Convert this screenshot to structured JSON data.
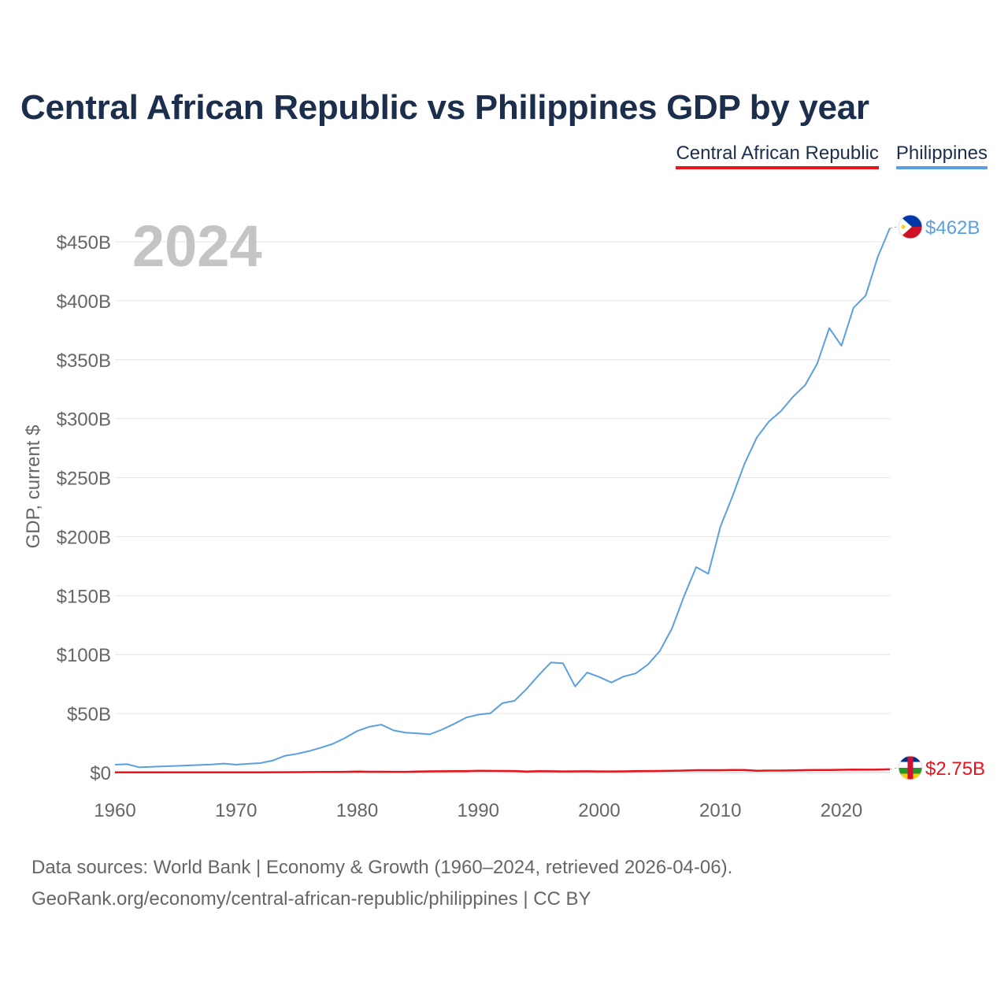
{
  "chart_data": {
    "type": "line",
    "title": "Central African Republic vs Philippines GDP by year",
    "ylabel": "GDP, current $",
    "xlabel": "",
    "year_watermark": "2024",
    "xlim": [
      1960,
      2024
    ],
    "ylim": [
      0,
      462
    ],
    "y_ticks": [
      0,
      50,
      100,
      150,
      200,
      250,
      300,
      350,
      400,
      450
    ],
    "y_tick_labels": [
      "$0",
      "$50B",
      "$100B",
      "$150B",
      "$200B",
      "$250B",
      "$300B",
      "$350B",
      "$400B",
      "$450B"
    ],
    "x_ticks": [
      1960,
      1970,
      1980,
      1990,
      2000,
      2010,
      2020
    ],
    "x_tick_labels": [
      "1960",
      "1970",
      "1980",
      "1990",
      "2000",
      "2010",
      "2020"
    ],
    "legend_position": "top-right",
    "x": [
      1960,
      1961,
      1962,
      1963,
      1964,
      1965,
      1966,
      1967,
      1968,
      1969,
      1970,
      1971,
      1972,
      1973,
      1974,
      1975,
      1976,
      1977,
      1978,
      1979,
      1980,
      1981,
      1982,
      1983,
      1984,
      1985,
      1986,
      1987,
      1988,
      1989,
      1990,
      1991,
      1992,
      1993,
      1994,
      1995,
      1996,
      1997,
      1998,
      1999,
      2000,
      2001,
      2002,
      2003,
      2004,
      2005,
      2006,
      2007,
      2008,
      2009,
      2010,
      2011,
      2012,
      2013,
      2014,
      2015,
      2016,
      2017,
      2018,
      2019,
      2020,
      2021,
      2022,
      2023,
      2024
    ],
    "series": [
      {
        "name": "Central African Republic",
        "color": "#e8141c",
        "end_label": "$2.75B",
        "values": [
          0.11,
          0.12,
          0.13,
          0.14,
          0.14,
          0.15,
          0.16,
          0.16,
          0.17,
          0.19,
          0.19,
          0.21,
          0.22,
          0.27,
          0.29,
          0.35,
          0.4,
          0.45,
          0.54,
          0.61,
          0.8,
          0.7,
          0.68,
          0.61,
          0.59,
          0.87,
          0.99,
          1.04,
          1.14,
          1.12,
          1.44,
          1.38,
          1.36,
          1.27,
          0.84,
          1.12,
          1.04,
          0.94,
          1.02,
          1.05,
          0.91,
          0.93,
          0.99,
          1.14,
          1.27,
          1.35,
          1.46,
          1.7,
          1.98,
          1.98,
          2.0,
          2.21,
          2.17,
          1.52,
          1.7,
          1.7,
          1.8,
          2.07,
          2.22,
          2.22,
          2.33,
          2.52,
          2.38,
          2.55,
          2.75
        ]
      },
      {
        "name": "Philippines",
        "color": "#5aa0e0",
        "end_label": "$462B",
        "values": [
          6.7,
          7.1,
          4.4,
          4.9,
          5.3,
          5.6,
          6.0,
          6.4,
          6.9,
          7.6,
          6.7,
          7.4,
          8.0,
          10.1,
          14.1,
          15.8,
          18.1,
          21.1,
          24.4,
          29.3,
          35.2,
          38.8,
          40.6,
          35.8,
          33.8,
          33.2,
          32.4,
          36.4,
          41.2,
          46.6,
          49.1,
          50.2,
          58.8,
          60.8,
          71.0,
          82.6,
          93.3,
          92.7,
          73.0,
          84.8,
          81.0,
          76.3,
          81.4,
          84.0,
          91.4,
          103.1,
          122.2,
          149.4,
          174.2,
          168.5,
          208.4,
          234.2,
          261.9,
          283.9,
          297.5,
          306.4,
          318.6,
          328.5,
          346.8,
          376.8,
          361.8,
          394.1,
          404.4,
          437.1,
          461.6
        ]
      }
    ]
  },
  "legend": {
    "items": [
      {
        "label": "Central African Republic",
        "color": "#e8141c"
      },
      {
        "label": "Philippines",
        "color": "#5aa0e0"
      }
    ]
  },
  "flags": {
    "cf": "central-african-republic-flag-icon",
    "ph": "philippines-flag-icon"
  },
  "source": {
    "line1": "Data sources: World Bank | Economy & Growth (1960–2024, retrieved 2026-04-06).",
    "line2": "GeoRank.org/economy/central-african-republic/philippines | CC BY"
  }
}
